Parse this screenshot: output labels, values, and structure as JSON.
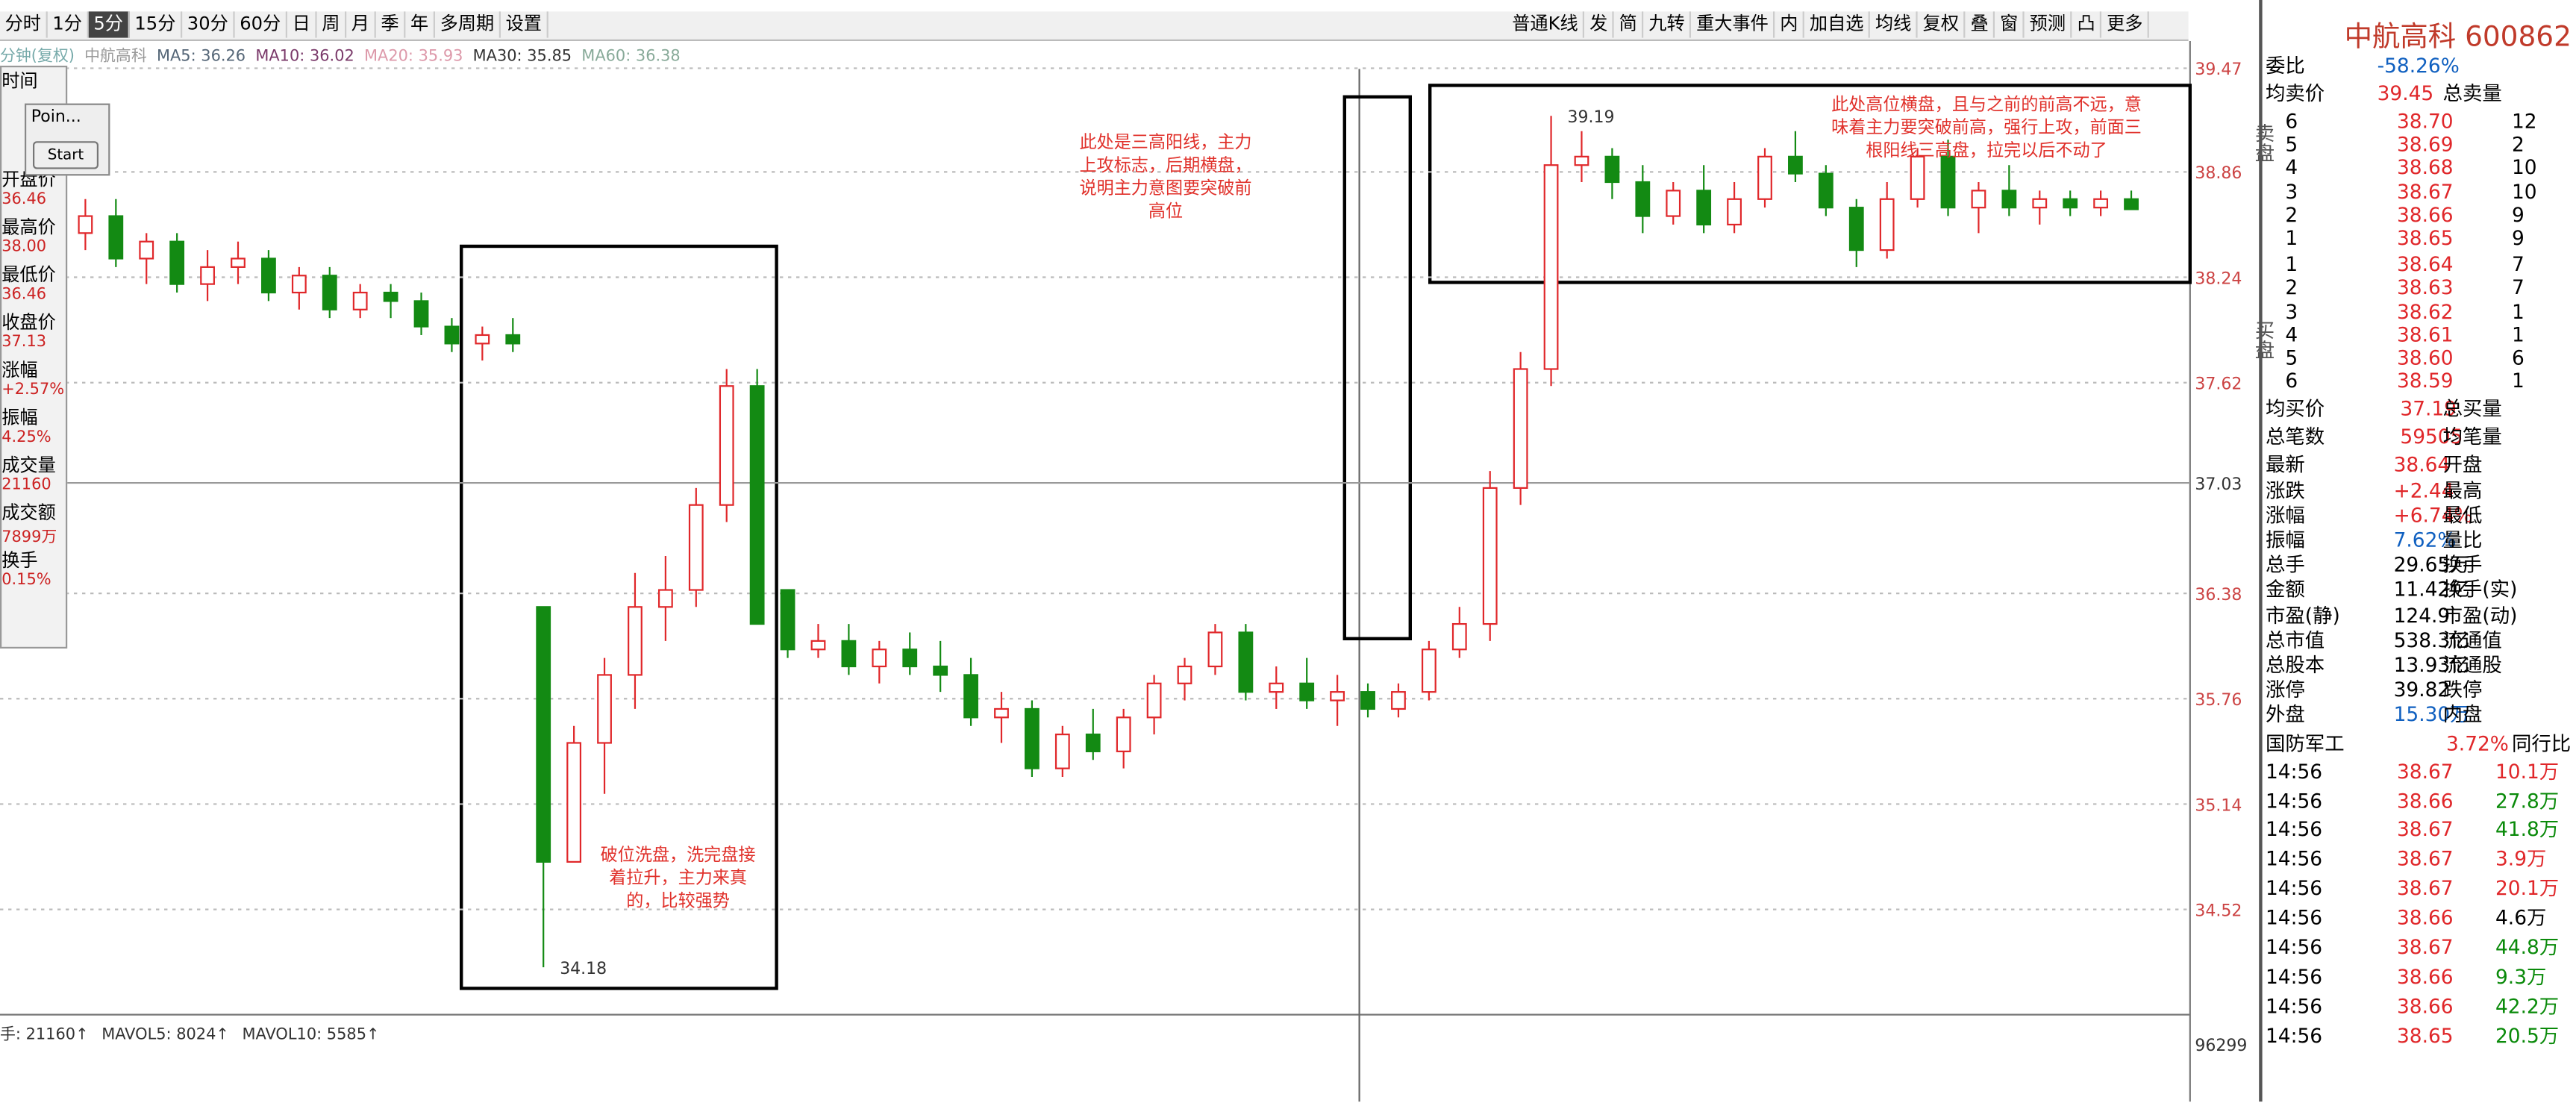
{
  "toolbar": {
    "periods": [
      "分时",
      "1分",
      "5分",
      "15分",
      "30分",
      "60分",
      "日",
      "周",
      "月",
      "季",
      "年",
      "多周期",
      "设置"
    ],
    "tools": [
      "普通K线",
      "发",
      "简",
      "九转",
      "重大事件",
      "内",
      "加自选",
      "均线",
      "复权",
      "叠",
      "窗",
      "预测",
      "凸",
      "更多"
    ]
  },
  "indicator_bar": [
    "分钟(复权)",
    "中航高科",
    "MA5: 36.26",
    "MA10: 36.02",
    "MA20: 35.93",
    "MA30: 35.85",
    "MA60: 36.38"
  ],
  "left_panel": {
    "title": "时间",
    "window": "Poin...",
    "button": "Start",
    "rows": [
      [
        "开盘价",
        "36.46"
      ],
      [
        "最高价",
        "38.00"
      ],
      [
        "最低价",
        "36.46"
      ],
      [
        "收盘价",
        "37.13"
      ],
      [
        "涨幅",
        "+2.57%"
      ],
      [
        "振幅",
        "4.25%"
      ],
      [
        "成交量",
        "21160"
      ],
      [
        "成交额",
        "7899万"
      ],
      [
        "换手",
        "0.15%"
      ]
    ]
  },
  "chart": {
    "ylim": [
      33.93,
      39.63
    ],
    "yticks": [
      39.47,
      38.86,
      38.24,
      37.62,
      37.03,
      36.38,
      35.76,
      35.14,
      34.52
    ],
    "candles": [
      [
        38.5,
        38.7,
        38.4,
        38.6
      ],
      [
        38.6,
        38.7,
        38.3,
        38.35
      ],
      [
        38.35,
        38.5,
        38.2,
        38.45
      ],
      [
        38.45,
        38.5,
        38.15,
        38.2
      ],
      [
        38.2,
        38.4,
        38.1,
        38.3
      ],
      [
        38.3,
        38.45,
        38.2,
        38.35
      ],
      [
        38.35,
        38.4,
        38.1,
        38.15
      ],
      [
        38.15,
        38.3,
        38.05,
        38.25
      ],
      [
        38.25,
        38.3,
        38.0,
        38.05
      ],
      [
        38.05,
        38.2,
        38.0,
        38.15
      ],
      [
        38.15,
        38.2,
        38.0,
        38.1
      ],
      [
        38.1,
        38.15,
        37.9,
        37.95
      ],
      [
        37.95,
        38.0,
        37.8,
        37.85
      ],
      [
        37.85,
        37.95,
        37.75,
        37.9
      ],
      [
        37.9,
        38.0,
        37.8,
        37.85
      ],
      [
        36.3,
        36.3,
        34.18,
        34.8
      ],
      [
        34.8,
        35.6,
        34.8,
        35.5
      ],
      [
        35.5,
        36.0,
        35.2,
        35.9
      ],
      [
        35.9,
        36.5,
        35.7,
        36.3
      ],
      [
        36.3,
        36.6,
        36.1,
        36.4
      ],
      [
        36.4,
        37.0,
        36.3,
        36.9
      ],
      [
        36.9,
        37.7,
        36.8,
        37.6
      ],
      [
        37.6,
        37.7,
        36.2,
        36.2
      ],
      [
        36.4,
        36.4,
        36.0,
        36.05
      ],
      [
        36.05,
        36.2,
        36.0,
        36.1
      ],
      [
        36.1,
        36.2,
        35.9,
        35.95
      ],
      [
        35.95,
        36.1,
        35.85,
        36.05
      ],
      [
        36.05,
        36.15,
        35.9,
        35.95
      ],
      [
        35.95,
        36.1,
        35.8,
        35.9
      ],
      [
        35.9,
        36.0,
        35.6,
        35.65
      ],
      [
        35.65,
        35.8,
        35.5,
        35.7
      ],
      [
        35.7,
        35.75,
        35.3,
        35.35
      ],
      [
        35.35,
        35.6,
        35.3,
        35.55
      ],
      [
        35.55,
        35.7,
        35.4,
        35.45
      ],
      [
        35.45,
        35.7,
        35.35,
        35.65
      ],
      [
        35.65,
        35.9,
        35.55,
        35.85
      ],
      [
        35.85,
        36.0,
        35.75,
        35.95
      ],
      [
        35.95,
        36.2,
        35.9,
        36.15
      ],
      [
        36.15,
        36.2,
        35.75,
        35.8
      ],
      [
        35.8,
        35.95,
        35.7,
        35.85
      ],
      [
        35.85,
        36.0,
        35.7,
        35.75
      ],
      [
        35.75,
        35.9,
        35.6,
        35.8
      ],
      [
        35.8,
        35.85,
        35.65,
        35.7
      ],
      [
        35.7,
        35.85,
        35.65,
        35.8
      ],
      [
        35.8,
        36.1,
        35.75,
        36.05
      ],
      [
        36.05,
        36.3,
        36.0,
        36.2
      ],
      [
        36.2,
        37.1,
        36.1,
        37.0
      ],
      [
        37.0,
        37.8,
        36.9,
        37.7
      ],
      [
        37.7,
        39.19,
        37.6,
        38.9
      ],
      [
        38.9,
        39.1,
        38.8,
        38.95
      ],
      [
        38.95,
        39.0,
        38.7,
        38.8
      ],
      [
        38.8,
        38.9,
        38.5,
        38.6
      ],
      [
        38.6,
        38.8,
        38.55,
        38.75
      ],
      [
        38.75,
        38.9,
        38.5,
        38.55
      ],
      [
        38.55,
        38.8,
        38.5,
        38.7
      ],
      [
        38.7,
        39.0,
        38.65,
        38.95
      ],
      [
        38.95,
        39.1,
        38.8,
        38.85
      ],
      [
        38.85,
        38.9,
        38.6,
        38.65
      ],
      [
        38.65,
        38.7,
        38.3,
        38.4
      ],
      [
        38.4,
        38.8,
        38.35,
        38.7
      ],
      [
        38.7,
        39.0,
        38.65,
        38.95
      ],
      [
        38.95,
        39.05,
        38.6,
        38.65
      ],
      [
        38.65,
        38.8,
        38.5,
        38.75
      ],
      [
        38.75,
        38.9,
        38.6,
        38.65
      ],
      [
        38.65,
        38.75,
        38.55,
        38.7
      ],
      [
        38.7,
        38.75,
        38.6,
        38.65
      ],
      [
        38.65,
        38.75,
        38.6,
        38.7
      ],
      [
        38.7,
        38.75,
        38.64,
        38.64
      ]
    ],
    "high_label": "39.19",
    "low_label": "34.18",
    "annotations": [
      "此处是三高阳线，主力上攻标志，后期横盘，说明主力意图要突破前高位",
      "此处高位横盘，且与之前的前高不远，意味着主力要突破前高，强行上攻，前面三根阳线三高盘，拉完以后不动了",
      "破位洗盘，洗完盘接着拉升，主力来真的，比较强势"
    ],
    "volume_bar": [
      "手: 21160↑",
      "MAVOL5: 8024↑",
      "MAVOL10: 5585↑"
    ],
    "volume_axis": "96299"
  },
  "quote": {
    "title": "中航高科 600862",
    "top": [
      [
        "委比",
        "-58.26%"
      ],
      [
        "均卖价",
        "39.45",
        "总卖量"
      ]
    ],
    "sell_label": "卖盘",
    "buy_label": "买盘",
    "sell": [
      [
        "6",
        "38.70",
        "12"
      ],
      [
        "5",
        "38.69",
        "2"
      ],
      [
        "4",
        "38.68",
        "10"
      ],
      [
        "3",
        "38.67",
        "10"
      ],
      [
        "2",
        "38.66",
        "9"
      ],
      [
        "1",
        "38.65",
        "9"
      ]
    ],
    "buy": [
      [
        "1",
        "38.64",
        "7"
      ],
      [
        "2",
        "38.63",
        "7"
      ],
      [
        "3",
        "38.62",
        "1"
      ],
      [
        "4",
        "38.61",
        "1"
      ],
      [
        "5",
        "38.60",
        "6"
      ],
      [
        "6",
        "38.59",
        "1"
      ]
    ],
    "mid": [
      [
        "均买价",
        "37.19",
        "总买量"
      ],
      [
        "总笔数",
        "59505",
        "均笔量"
      ]
    ],
    "stats": [
      [
        "最新",
        "38.64",
        "开盘"
      ],
      [
        "涨跌",
        "+2.44",
        "最高"
      ],
      [
        "涨幅",
        "+6.74%",
        "最低"
      ],
      [
        "振幅",
        "7.62%",
        "量比"
      ],
      [
        "总手",
        "29.65万",
        "换手"
      ],
      [
        "金额",
        "11.42亿",
        "换手(实)"
      ],
      [
        "市盈(静)",
        "124.9",
        "市盈(动)"
      ],
      [
        "总市值",
        "538.3亿",
        "流通值"
      ],
      [
        "总股本",
        "13.93亿",
        "流通股"
      ],
      [
        "涨停",
        "39.82",
        "跌停"
      ],
      [
        "外盘",
        "15.30万",
        "内盘"
      ]
    ],
    "sector": [
      "国防军工",
      "3.72%",
      "同行比"
    ],
    "trades": [
      [
        "14:56",
        "38.67",
        "10.1万"
      ],
      [
        "14:56",
        "38.66",
        "27.8万"
      ],
      [
        "14:56",
        "38.67",
        "41.8万"
      ],
      [
        "14:56",
        "38.67",
        "3.9万"
      ],
      [
        "14:56",
        "38.67",
        "20.1万"
      ],
      [
        "14:56",
        "38.66",
        "4.6万"
      ],
      [
        "14:56",
        "38.67",
        "44.8万"
      ],
      [
        "14:56",
        "38.66",
        "9.3万"
      ],
      [
        "14:56",
        "38.66",
        "42.2万"
      ],
      [
        "14:56",
        "38.65",
        "20.5万"
      ]
    ]
  }
}
